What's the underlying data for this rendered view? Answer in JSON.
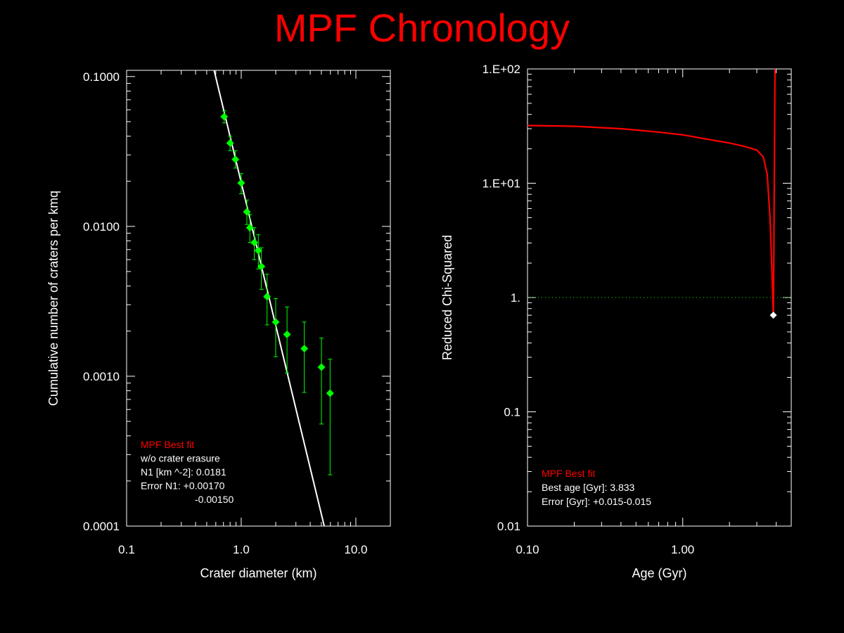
{
  "title": "MPF Chronology",
  "colors": {
    "background": "#000000",
    "title": "#ff0000",
    "axes": "#ffffff",
    "data_points": "#00ff00",
    "fit_line": "#ffffff",
    "chi_curve": "#ff0000",
    "best_marker": "#ffffff",
    "reference_line": "#00ff00"
  },
  "chart_data": [
    {
      "type": "scatter",
      "name": "crater-size-frequency",
      "xlabel": "Crater diameter (km)",
      "ylabel": "Cumulative number of craters per kmq",
      "xscale": "log",
      "yscale": "log",
      "xlim": [
        0.1,
        20
      ],
      "ylim": [
        0.0001,
        0.11
      ],
      "xticks": [
        {
          "value": 0.1,
          "label": "0.1"
        },
        {
          "value": 1.0,
          "label": "1.0"
        },
        {
          "value": 10.0,
          "label": "10.0"
        }
      ],
      "yticks": [
        {
          "value": 0.0001,
          "label": "0.0001"
        },
        {
          "value": 0.001,
          "label": "0.0010"
        },
        {
          "value": 0.01,
          "label": "0.0100"
        },
        {
          "value": 0.1,
          "label": "0.1000"
        }
      ],
      "points": [
        {
          "x": 0.71,
          "y": 0.054,
          "ylo": 0.049,
          "yhi": 0.059
        },
        {
          "x": 0.8,
          "y": 0.036,
          "ylo": 0.032,
          "yhi": 0.04
        },
        {
          "x": 0.89,
          "y": 0.028,
          "ylo": 0.0245,
          "yhi": 0.032
        },
        {
          "x": 1.0,
          "y": 0.0195,
          "ylo": 0.0165,
          "yhi": 0.0225
        },
        {
          "x": 1.12,
          "y": 0.0125,
          "ylo": 0.0103,
          "yhi": 0.015
        },
        {
          "x": 1.19,
          "y": 0.0098,
          "ylo": 0.0078,
          "yhi": 0.012
        },
        {
          "x": 1.3,
          "y": 0.0078,
          "ylo": 0.006,
          "yhi": 0.0098
        },
        {
          "x": 1.41,
          "y": 0.0069,
          "ylo": 0.0052,
          "yhi": 0.0088
        },
        {
          "x": 1.5,
          "y": 0.0054,
          "ylo": 0.0038,
          "yhi": 0.0072
        },
        {
          "x": 1.68,
          "y": 0.0034,
          "ylo": 0.0022,
          "yhi": 0.0048
        },
        {
          "x": 2.0,
          "y": 0.0023,
          "ylo": 0.00135,
          "yhi": 0.0033
        },
        {
          "x": 2.51,
          "y": 0.0019,
          "ylo": 0.00105,
          "yhi": 0.0029
        },
        {
          "x": 3.55,
          "y": 0.00153,
          "ylo": 0.00078,
          "yhi": 0.0023
        },
        {
          "x": 5.01,
          "y": 0.00115,
          "ylo": 0.00048,
          "yhi": 0.0018
        },
        {
          "x": 5.96,
          "y": 0.00077,
          "ylo": 0.00022,
          "yhi": 0.0013
        }
      ],
      "fit_line": [
        {
          "x": 0.58,
          "y": 0.11
        },
        {
          "x": 5.3,
          "y": 0.0001
        }
      ],
      "legend": {
        "title": "MPF Best fit",
        "lines": [
          "w/o crater erasure",
          "N1 [km ^-2]: 0.0181",
          "Error N1: +0.00170",
          "-0.00150"
        ]
      }
    },
    {
      "type": "line",
      "name": "reduced-chi-squared",
      "xlabel": "Age (Gyr)",
      "ylabel": "Reduced Chi-Squared",
      "xscale": "log",
      "yscale": "log",
      "xlim": [
        0.1,
        5.0
      ],
      "ylim": [
        0.01,
        100
      ],
      "xticks": [
        {
          "value": 0.1,
          "label": "0.10"
        },
        {
          "value": 1.0,
          "label": "1.00"
        }
      ],
      "yticks": [
        {
          "value": 0.01,
          "label": "0.01"
        },
        {
          "value": 0.1,
          "label": "0.1"
        },
        {
          "value": 1,
          "label": "1."
        },
        {
          "value": 10,
          "label": "1.E+01"
        },
        {
          "value": 100,
          "label": "1.E+02"
        }
      ],
      "reference_y": 1.0,
      "curve": [
        {
          "x": 0.1,
          "y": 32
        },
        {
          "x": 0.2,
          "y": 31.5
        },
        {
          "x": 0.4,
          "y": 30
        },
        {
          "x": 0.7,
          "y": 28
        },
        {
          "x": 1.0,
          "y": 26.5
        },
        {
          "x": 1.5,
          "y": 24
        },
        {
          "x": 2.0,
          "y": 22.5
        },
        {
          "x": 2.5,
          "y": 21
        },
        {
          "x": 3.0,
          "y": 19.5
        },
        {
          "x": 3.3,
          "y": 17
        },
        {
          "x": 3.5,
          "y": 12
        },
        {
          "x": 3.65,
          "y": 5
        },
        {
          "x": 3.74,
          "y": 2
        },
        {
          "x": 3.8,
          "y": 1.0
        },
        {
          "x": 3.833,
          "y": 0.7
        },
        {
          "x": 3.86,
          "y": 2
        },
        {
          "x": 3.9,
          "y": 20
        },
        {
          "x": 3.93,
          "y": 100
        }
      ],
      "best_point": {
        "x": 3.833,
        "y": 0.7
      },
      "legend": {
        "title": "MPF Best fit",
        "lines": [
          "Best age [Gyr]: 3.833",
          "Error [Gyr]: +0.015-0.015"
        ]
      }
    }
  ]
}
